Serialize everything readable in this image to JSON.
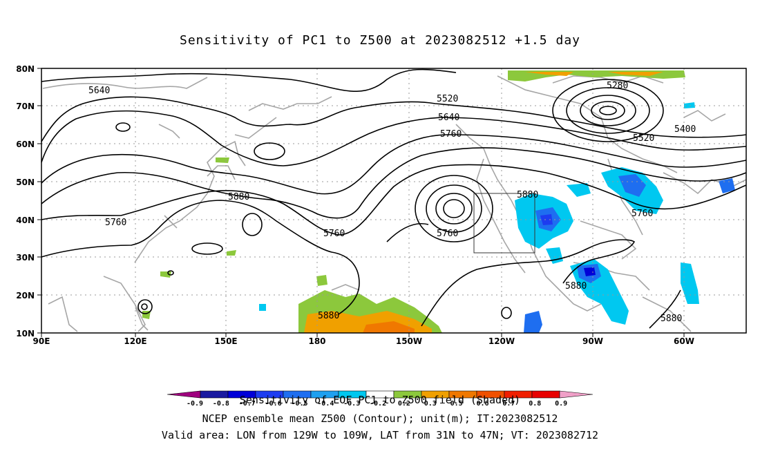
{
  "title": "Sensitivity of PC1 to Z500 at 2023082512 +1.5 day",
  "map": {
    "lon_ticks": [
      "90E",
      "120E",
      "150E",
      "180",
      "150W",
      "120W",
      "90W",
      "60W"
    ],
    "lat_ticks": [
      "80N",
      "70N",
      "60N",
      "50N",
      "40N",
      "30N",
      "20N",
      "10N"
    ],
    "contour_labels": [
      "5640",
      "5520",
      "5280",
      "5640",
      "5760",
      "5400",
      "5520",
      "5880",
      "5880",
      "5760",
      "5760",
      "5760",
      "5760",
      "5880",
      "5880",
      "5880"
    ],
    "target_box": "129W-109W, 31N-47N"
  },
  "colorbar": {
    "ticks": [
      "-0.9",
      "-0.8",
      "-0.7",
      "-0.6",
      "-0.5",
      "-0.4",
      "-0.3",
      "-0.2",
      "0.2",
      "0.3",
      "0.5",
      "0.6",
      "0.7",
      "0.8",
      "0.9"
    ],
    "colors": [
      "#a0007f",
      "#1a1aa0",
      "#0000d8",
      "#1d3cf0",
      "#1e6ef0",
      "#1ea0f0",
      "#00c8f0",
      "#ffffff",
      "#8cc83c",
      "#f0a000",
      "#f07800",
      "#f05000",
      "#f01e00",
      "#e80000",
      "#f0a0c8"
    ]
  },
  "footer": {
    "line1": "Sensitivity of EOF PC1 to Z500 field (Shaded)",
    "line2": "NCEP ensemble mean Z500 (Contour); unit(m); IT:2023082512",
    "line3": "Valid area: LON from 129W to 109W, LAT from 31N to 47N; VT: 2023082712"
  }
}
